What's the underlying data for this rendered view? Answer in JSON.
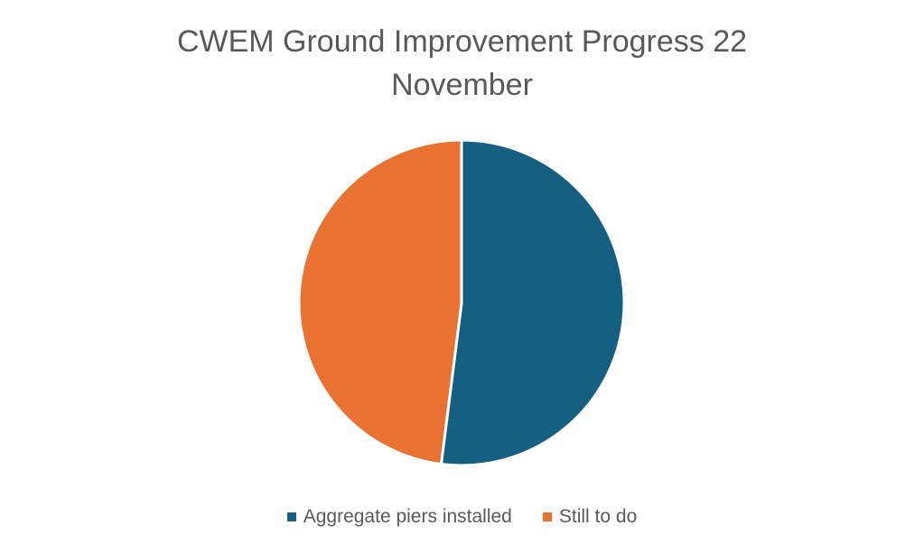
{
  "chart_data": {
    "type": "pie",
    "title_lines": [
      "CWEM Ground Improvement Progress 22",
      "November"
    ],
    "categories": [
      "Aggregate piers installed",
      "Still to do"
    ],
    "values": [
      52,
      48
    ],
    "colors": [
      "#156082",
      "#E97132"
    ],
    "legend_position": "bottom"
  }
}
